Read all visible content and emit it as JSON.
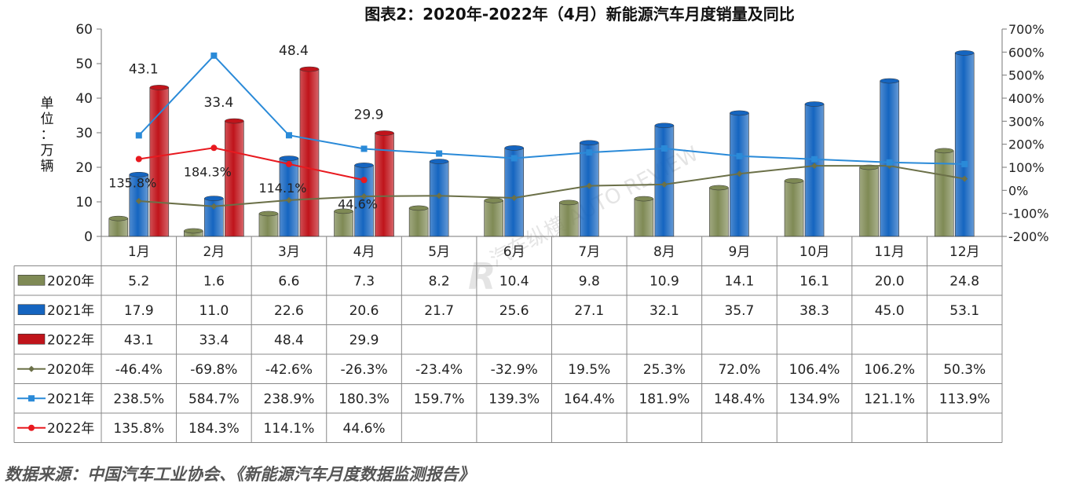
{
  "chart_data": {
    "type": "bar",
    "title": "图表2：2020年-2022年（4月）新能源汽车月度销量及同比",
    "ylabel": "单位：万辆",
    "ylim": [
      0,
      60
    ],
    "y_ticks": [
      "0",
      "10",
      "20",
      "30",
      "40",
      "50",
      "60"
    ],
    "y2lim": [
      -200,
      700
    ],
    "y2_ticks": [
      "-200%",
      "-100%",
      "0%",
      "100%",
      "200%",
      "300%",
      "400%",
      "500%",
      "600%",
      "700%"
    ],
    "categories": [
      "1月",
      "2月",
      "3月",
      "4月",
      "5月",
      "6月",
      "7月",
      "8月",
      "9月",
      "10月",
      "11月",
      "12月"
    ],
    "bar_series": [
      {
        "name": "2020年",
        "color": "#7f8a55",
        "values": [
          5.2,
          1.6,
          6.6,
          7.3,
          8.2,
          10.4,
          9.8,
          10.9,
          14.1,
          16.1,
          20.0,
          24.8
        ],
        "labels": [
          "5.2",
          "1.6",
          "6.6",
          "7.3",
          "8.2",
          "10.4",
          "9.8",
          "10.9",
          "14.1",
          "16.1",
          "20.0",
          "24.8"
        ]
      },
      {
        "name": "2021年",
        "color": "#1565c0",
        "values": [
          17.9,
          11.0,
          22.6,
          20.6,
          21.7,
          25.6,
          27.1,
          32.1,
          35.7,
          38.3,
          45.0,
          53.1
        ],
        "labels": [
          "17.9",
          "11.0",
          "22.6",
          "20.6",
          "21.7",
          "25.6",
          "27.1",
          "32.1",
          "35.7",
          "38.3",
          "45.0",
          "53.1"
        ]
      },
      {
        "name": "2022年",
        "color": "#c0141b",
        "values": [
          43.1,
          33.4,
          48.4,
          29.9,
          null,
          null,
          null,
          null,
          null,
          null,
          null,
          null
        ],
        "labels": [
          "43.1",
          "33.4",
          "48.4",
          "29.9",
          "",
          "",
          "",
          "",
          "",
          "",
          "",
          ""
        ]
      }
    ],
    "line_series": [
      {
        "name": "2020年",
        "color": "#6b7048",
        "marker": "diamond",
        "values": [
          -46.4,
          -69.8,
          -42.6,
          -26.3,
          -23.4,
          -32.9,
          19.5,
          25.3,
          72.0,
          106.4,
          106.2,
          50.3
        ],
        "labels": [
          "-46.4%",
          "-69.8%",
          "-42.6%",
          "-26.3%",
          "-23.4%",
          "-32.9%",
          "19.5%",
          "25.3%",
          "72.0%",
          "106.4%",
          "106.2%",
          "50.3%"
        ]
      },
      {
        "name": "2021年",
        "color": "#2a8ad8",
        "marker": "square",
        "values": [
          238.5,
          584.7,
          238.9,
          180.3,
          159.7,
          139.3,
          164.4,
          181.9,
          148.4,
          134.9,
          121.1,
          113.9
        ],
        "labels": [
          "238.5%",
          "584.7%",
          "238.9%",
          "180.3%",
          "159.7%",
          "139.3%",
          "164.4%",
          "181.9%",
          "148.4%",
          "134.9%",
          "121.1%",
          "113.9%"
        ]
      },
      {
        "name": "2022年",
        "color": "#e8191f",
        "marker": "circle",
        "values": [
          135.8,
          184.3,
          114.1,
          44.6,
          null,
          null,
          null,
          null,
          null,
          null,
          null,
          null
        ],
        "labels": [
          "135.8%",
          "184.3%",
          "114.1%",
          "44.6%",
          "",
          "",
          "",
          "",
          "",
          "",
          "",
          ""
        ]
      }
    ],
    "data_labels": [
      {
        "text": "43.1",
        "series": "2022年",
        "category": "1月"
      },
      {
        "text": "33.4",
        "series": "2022年",
        "category": "2月"
      },
      {
        "text": "48.4",
        "series": "2022年",
        "category": "3月"
      },
      {
        "text": "29.9",
        "series": "2022年",
        "category": "4月"
      },
      {
        "text": "135.8%",
        "series": "2022年",
        "category": "1月"
      },
      {
        "text": "184.3%",
        "series": "2022年",
        "category": "2月"
      },
      {
        "text": "114.1%",
        "series": "2022年",
        "category": "3月"
      },
      {
        "text": "44.6%",
        "series": "2022年",
        "category": "4月"
      }
    ],
    "watermark": "汽车纵横 AUTO REVIEW"
  },
  "source_note": "数据来源：中国汽车工业协会、《新能源汽车月度数据监测报告》"
}
